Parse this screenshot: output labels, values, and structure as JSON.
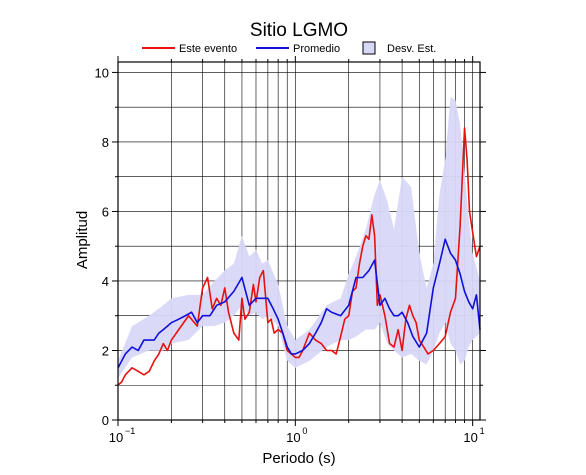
{
  "chart_data": {
    "type": "line",
    "title": "Sitio LGMO",
    "xlabel": "Periodo (s)",
    "ylabel": "Amplitud",
    "xscale": "log",
    "xlim": [
      0.1,
      11
    ],
    "ylim": [
      0,
      10.3
    ],
    "grid": true,
    "legend_position": "top",
    "x_tick_labels": [
      {
        "value": 0.1,
        "base": "10",
        "exp": "−1"
      },
      {
        "value": 1,
        "base": "10",
        "exp": "0"
      },
      {
        "value": 10,
        "base": "10",
        "exp": "1"
      }
    ],
    "y_ticks": [
      0,
      2,
      4,
      6,
      8,
      10
    ],
    "y_tick_labels": [
      "0",
      "2",
      "4",
      "6",
      "8",
      "10"
    ],
    "band": {
      "name": "Desv. Est.",
      "color": "#d8d8f8",
      "edge_color": "#000000",
      "x": [
        0.1,
        0.12,
        0.15,
        0.18,
        0.2,
        0.25,
        0.3,
        0.35,
        0.4,
        0.45,
        0.5,
        0.55,
        0.6,
        0.65,
        0.7,
        0.8,
        0.9,
        1.0,
        1.2,
        1.5,
        1.8,
        2.0,
        2.2,
        2.5,
        2.8,
        3.0,
        3.3,
        3.6,
        4.0,
        4.5,
        5.0,
        5.5,
        6.0,
        6.5,
        7.0,
        7.5,
        8.0,
        8.5,
        9.0,
        9.5,
        10.0,
        11.0
      ],
      "upper": [
        1.7,
        2.7,
        3.0,
        3.3,
        3.5,
        3.6,
        3.6,
        4.0,
        4.3,
        4.5,
        5.3,
        4.7,
        4.9,
        4.5,
        4.6,
        3.9,
        2.7,
        2.3,
        2.6,
        3.3,
        3.5,
        4.2,
        4.7,
        5.5,
        6.5,
        6.9,
        6.3,
        5.5,
        7.0,
        6.7,
        4.8,
        3.8,
        4.5,
        6.5,
        7.5,
        9.3,
        9.2,
        8.5,
        7.2,
        5.8,
        4.8,
        4.0
      ],
      "lower": [
        1.2,
        1.8,
        2.0,
        2.0,
        2.2,
        2.3,
        2.7,
        2.7,
        2.8,
        3.0,
        3.3,
        3.0,
        3.1,
        2.9,
        3.0,
        2.7,
        1.7,
        1.5,
        1.7,
        2.1,
        2.3,
        2.3,
        2.4,
        2.6,
        2.6,
        2.8,
        2.2,
        2.0,
        1.8,
        1.9,
        1.7,
        1.6,
        2.0,
        2.5,
        2.8,
        2.2,
        2.0,
        1.6,
        1.7,
        2.1,
        2.3,
        2.5
      ]
    },
    "series": [
      {
        "name": "Este evento",
        "color": "#e81010",
        "x": [
          0.1,
          0.105,
          0.11,
          0.12,
          0.13,
          0.14,
          0.15,
          0.16,
          0.17,
          0.18,
          0.19,
          0.2,
          0.22,
          0.25,
          0.28,
          0.3,
          0.32,
          0.34,
          0.36,
          0.38,
          0.4,
          0.42,
          0.45,
          0.48,
          0.5,
          0.52,
          0.55,
          0.58,
          0.6,
          0.63,
          0.66,
          0.7,
          0.73,
          0.76,
          0.8,
          0.85,
          0.9,
          0.95,
          1.0,
          1.05,
          1.1,
          1.2,
          1.3,
          1.4,
          1.5,
          1.6,
          1.7,
          1.8,
          1.9,
          2.0,
          2.1,
          2.2,
          2.3,
          2.4,
          2.5,
          2.6,
          2.7,
          2.8,
          2.9,
          3.0,
          3.2,
          3.4,
          3.6,
          3.8,
          4.0,
          4.2,
          4.4,
          4.6,
          4.8,
          5.0,
          5.3,
          5.6,
          6.0,
          6.5,
          7.0,
          7.5,
          8.0,
          8.5,
          8.8,
          9.0,
          9.3,
          9.6,
          10.0,
          10.5,
          11.0
        ],
        "y": [
          1.0,
          1.1,
          1.3,
          1.5,
          1.4,
          1.3,
          1.4,
          1.7,
          1.9,
          2.2,
          2.0,
          2.3,
          2.6,
          3.0,
          2.7,
          3.8,
          4.1,
          3.2,
          3.5,
          3.3,
          3.8,
          3.1,
          2.5,
          2.3,
          3.5,
          2.9,
          3.1,
          3.9,
          3.4,
          4.1,
          4.3,
          2.8,
          2.9,
          2.5,
          2.6,
          2.5,
          2.0,
          1.9,
          1.8,
          1.8,
          2.0,
          2.5,
          2.3,
          2.2,
          2.0,
          2.0,
          1.9,
          2.4,
          2.9,
          3.0,
          3.7,
          3.8,
          4.5,
          5.0,
          5.3,
          5.2,
          5.9,
          5.3,
          3.3,
          3.6,
          3.0,
          2.2,
          2.1,
          2.6,
          2.0,
          2.9,
          3.3,
          3.0,
          2.8,
          2.3,
          2.1,
          1.9,
          2.0,
          2.2,
          2.4,
          3.1,
          3.5,
          5.6,
          7.3,
          8.4,
          7.5,
          6.0,
          5.4,
          4.7,
          5.0
        ]
      },
      {
        "name": "Promedio",
        "color": "#1010d8",
        "x": [
          0.1,
          0.11,
          0.12,
          0.13,
          0.14,
          0.15,
          0.16,
          0.17,
          0.18,
          0.19,
          0.2,
          0.22,
          0.24,
          0.26,
          0.28,
          0.3,
          0.33,
          0.36,
          0.4,
          0.45,
          0.5,
          0.55,
          0.6,
          0.65,
          0.7,
          0.75,
          0.8,
          0.85,
          0.9,
          0.95,
          1.0,
          1.1,
          1.2,
          1.3,
          1.4,
          1.5,
          1.6,
          1.8,
          2.0,
          2.2,
          2.4,
          2.6,
          2.8,
          3.0,
          3.2,
          3.4,
          3.6,
          3.8,
          4.0,
          4.3,
          4.6,
          5.0,
          5.5,
          6.0,
          6.5,
          7.0,
          7.5,
          8.0,
          8.5,
          9.0,
          9.5,
          10.0,
          10.5,
          11.0
        ],
        "y": [
          1.5,
          1.9,
          2.1,
          2.0,
          2.3,
          2.3,
          2.3,
          2.5,
          2.6,
          2.7,
          2.8,
          2.9,
          3.0,
          3.1,
          2.8,
          3.0,
          3.0,
          3.3,
          3.4,
          3.7,
          4.1,
          3.3,
          3.5,
          3.5,
          3.5,
          3.2,
          2.9,
          2.5,
          2.1,
          1.9,
          1.9,
          2.0,
          2.2,
          2.5,
          2.8,
          3.2,
          3.1,
          3.0,
          3.3,
          4.1,
          4.1,
          4.3,
          4.6,
          3.3,
          3.5,
          3.2,
          3.0,
          3.0,
          3.1,
          2.8,
          2.4,
          2.1,
          2.5,
          3.8,
          4.5,
          5.2,
          4.8,
          4.6,
          4.2,
          3.7,
          3.4,
          3.2,
          3.6,
          2.6
        ]
      }
    ]
  }
}
